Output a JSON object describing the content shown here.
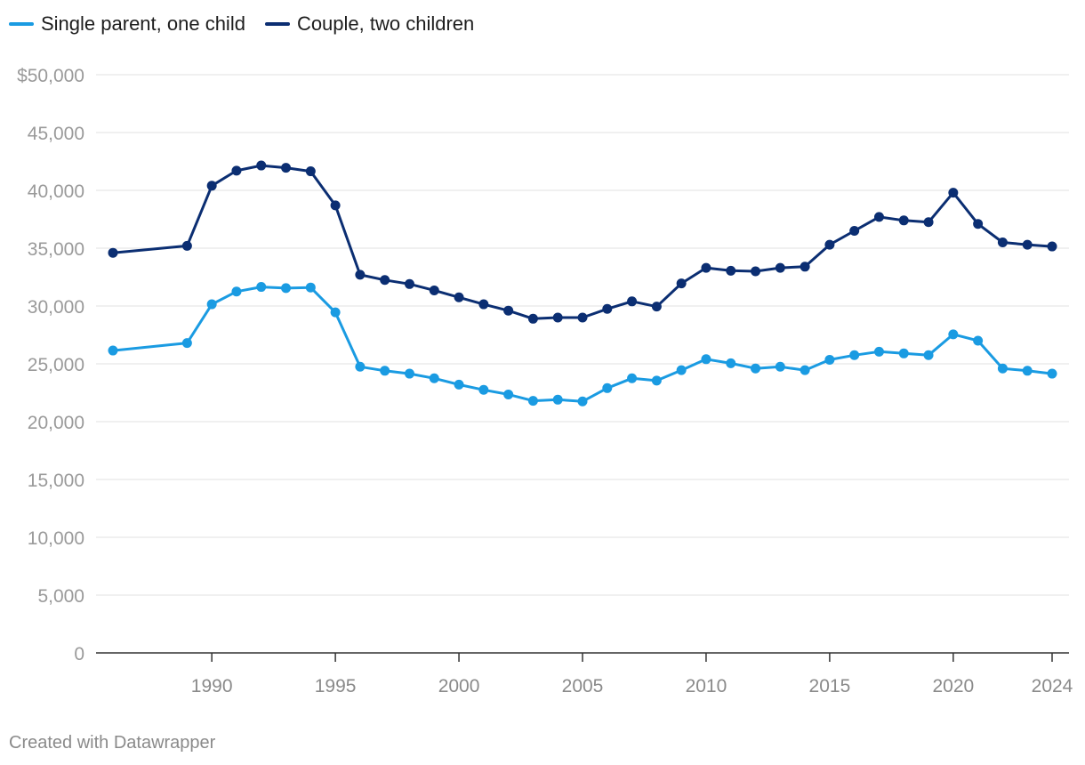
{
  "chart_data": {
    "type": "line",
    "title": "",
    "xlabel": "",
    "ylabel": "",
    "x": [
      1986,
      1989,
      1990,
      1991,
      1992,
      1993,
      1994,
      1995,
      1996,
      1997,
      1998,
      1999,
      2000,
      2001,
      2002,
      2003,
      2004,
      2005,
      2006,
      2007,
      2008,
      2009,
      2010,
      2011,
      2012,
      2013,
      2014,
      2015,
      2016,
      2017,
      2018,
      2019,
      2020,
      2021,
      2022,
      2023,
      2024
    ],
    "series": [
      {
        "name": "Single parent, one child",
        "color": "#1a9be2",
        "values": [
          26150,
          26800,
          30150,
          31250,
          31650,
          31550,
          31600,
          29450,
          24750,
          24400,
          24150,
          23750,
          23200,
          22750,
          22350,
          21800,
          21900,
          21750,
          22900,
          23750,
          23550,
          24450,
          25400,
          25050,
          24600,
          24750,
          24450,
          25350,
          25750,
          26050,
          25900,
          25750,
          27550,
          27000,
          24600,
          24400,
          24150
        ]
      },
      {
        "name": "Couple, two children",
        "color": "#0b2e72",
        "values": [
          34600,
          35200,
          40400,
          41700,
          42150,
          41950,
          41650,
          38700,
          32700,
          32250,
          31900,
          31350,
          30750,
          30150,
          29600,
          28900,
          29000,
          29000,
          29750,
          30400,
          29950,
          31950,
          33300,
          33050,
          33000,
          33300,
          33400,
          35300,
          36500,
          37700,
          37400,
          37250,
          39800,
          37100,
          35500,
          35300,
          35150
        ]
      }
    ],
    "y_ticks": [
      0,
      5000,
      10000,
      15000,
      20000,
      25000,
      30000,
      35000,
      40000,
      45000,
      50000
    ],
    "y_tick_labels": [
      "0",
      "5,000",
      "10,000",
      "15,000",
      "20,000",
      "25,000",
      "30,000",
      "35,000",
      "40,000",
      "45,000",
      "$50,000"
    ],
    "x_ticks": [
      1990,
      1995,
      2000,
      2005,
      2010,
      2015,
      2020,
      2024
    ],
    "x_tick_labels": [
      "1990",
      "1995",
      "2000",
      "2005",
      "2010",
      "2015",
      "2020",
      "2024"
    ],
    "xlim": [
      1986,
      2024
    ],
    "ylim": [
      0,
      50000
    ],
    "grid": true,
    "legend_position": "top-left"
  },
  "legend": [
    {
      "label": "Single parent, one child",
      "color": "#1a9be2"
    },
    {
      "label": "Couple, two children",
      "color": "#0b2e72"
    }
  ],
  "footer": {
    "credit": "Created with Datawrapper"
  }
}
